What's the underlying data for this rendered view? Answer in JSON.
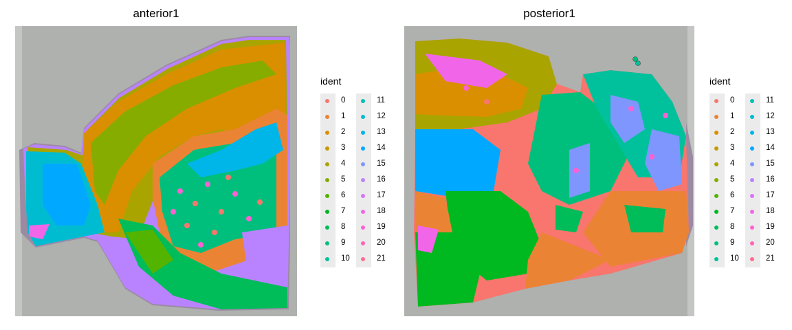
{
  "panels": [
    {
      "id": "anterior",
      "title": "anterior1"
    },
    {
      "id": "posterior",
      "title": "posterior1"
    }
  ],
  "legend": {
    "title": "ident",
    "items": [
      {
        "label": "0",
        "color": "#F8766D"
      },
      {
        "label": "1",
        "color": "#EB8335"
      },
      {
        "label": "2",
        "color": "#DA8F00"
      },
      {
        "label": "3",
        "color": "#C49A00"
      },
      {
        "label": "4",
        "color": "#A9A400"
      },
      {
        "label": "5",
        "color": "#86AC00"
      },
      {
        "label": "6",
        "color": "#53B400"
      },
      {
        "label": "7",
        "color": "#00B81F"
      },
      {
        "label": "8",
        "color": "#00BC59"
      },
      {
        "label": "9",
        "color": "#00BF7D"
      },
      {
        "label": "10",
        "color": "#00C19C"
      },
      {
        "label": "11",
        "color": "#00C0B7"
      },
      {
        "label": "12",
        "color": "#00BCD1"
      },
      {
        "label": "13",
        "color": "#00B5E7"
      },
      {
        "label": "14",
        "color": "#00A9FF"
      },
      {
        "label": "15",
        "color": "#7F96FF"
      },
      {
        "label": "16",
        "color": "#B983FF"
      },
      {
        "label": "17",
        "color": "#DB72FB"
      },
      {
        "label": "18",
        "color": "#F166E8"
      },
      {
        "label": "19",
        "color": "#FC61D2"
      },
      {
        "label": "20",
        "color": "#FF63B6"
      },
      {
        "label": "21",
        "color": "#FF6C91"
      }
    ]
  }
}
